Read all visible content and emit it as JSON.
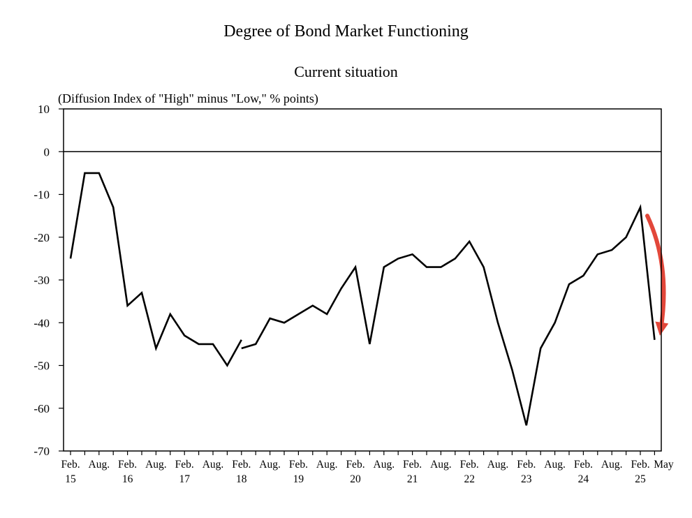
{
  "title": "Degree of Bond Market Functioning",
  "subtitle": "Current situation",
  "unit_note": "(Diffusion Index of \"High\" minus \"Low,\" % points)",
  "colors": {
    "line": "#000000",
    "arrow": "#e2473a",
    "frame": "#000000"
  },
  "chart_data": {
    "type": "line",
    "title": "Degree of Bond Market Functioning",
    "subtitle": "Current situation",
    "ylabel": "(Diffusion Index of \"High\" minus \"Low,\" % points)",
    "ylim": [
      -70,
      10
    ],
    "y_ticks": [
      10,
      0,
      -10,
      -20,
      -30,
      -40,
      -50,
      -60,
      -70
    ],
    "grid": false,
    "x_tick_labels": [
      [
        "Feb.",
        "15"
      ],
      [
        "Aug.",
        ""
      ],
      [
        "Feb.",
        "16"
      ],
      [
        "Aug.",
        ""
      ],
      [
        "Feb.",
        "17"
      ],
      [
        "Aug.",
        ""
      ],
      [
        "Feb.",
        "18"
      ],
      [
        "Aug.",
        ""
      ],
      [
        "Feb.",
        "19"
      ],
      [
        "Aug.",
        ""
      ],
      [
        "Feb.",
        "20"
      ],
      [
        "Aug.",
        ""
      ],
      [
        "Feb.",
        "21"
      ],
      [
        "Aug.",
        ""
      ],
      [
        "Feb.",
        "22"
      ],
      [
        "Aug.",
        ""
      ],
      [
        "Feb.",
        "23"
      ],
      [
        "Aug.",
        ""
      ],
      [
        "Feb.",
        "24"
      ],
      [
        "Aug.",
        ""
      ],
      [
        "Feb.",
        "25"
      ],
      [
        "May",
        ""
      ]
    ],
    "segments": [
      {
        "x": [
          "Feb-15",
          "May-15",
          "Aug-15",
          "Nov-15",
          "Feb-16",
          "May-16",
          "Aug-16",
          "Nov-16",
          "Feb-17",
          "May-17",
          "Aug-17",
          "Nov-17",
          "Feb-18"
        ],
        "y": [
          -25,
          -5,
          -5,
          -13,
          -36,
          -33,
          -46,
          -38,
          -43,
          -45,
          -45,
          -50,
          -44
        ]
      },
      {
        "x": [
          "Feb-18",
          "May-18",
          "Aug-18",
          "Nov-18",
          "Feb-19",
          "May-19",
          "Aug-19",
          "Nov-19",
          "Feb-20",
          "May-20",
          "Aug-20",
          "Nov-20",
          "Feb-21",
          "May-21",
          "Aug-21",
          "Nov-21",
          "Feb-22",
          "May-22",
          "Aug-22",
          "Nov-22",
          "Feb-23",
          "May-23",
          "Aug-23",
          "Nov-23",
          "Feb-24",
          "May-24",
          "Aug-24",
          "Nov-24",
          "Feb-25",
          "May-25"
        ],
        "y": [
          -46,
          -45,
          -39,
          -40,
          -38,
          -36,
          -38,
          -32,
          -27,
          -45,
          -27,
          -25,
          -24,
          -27,
          -27,
          -25,
          -21,
          -27,
          -40,
          -51,
          -64,
          -46,
          -40,
          -31,
          -29,
          -24,
          -23,
          -20,
          -13,
          -44
        ]
      }
    ],
    "annotation": "downward arrow from Feb-25 to May-25"
  }
}
